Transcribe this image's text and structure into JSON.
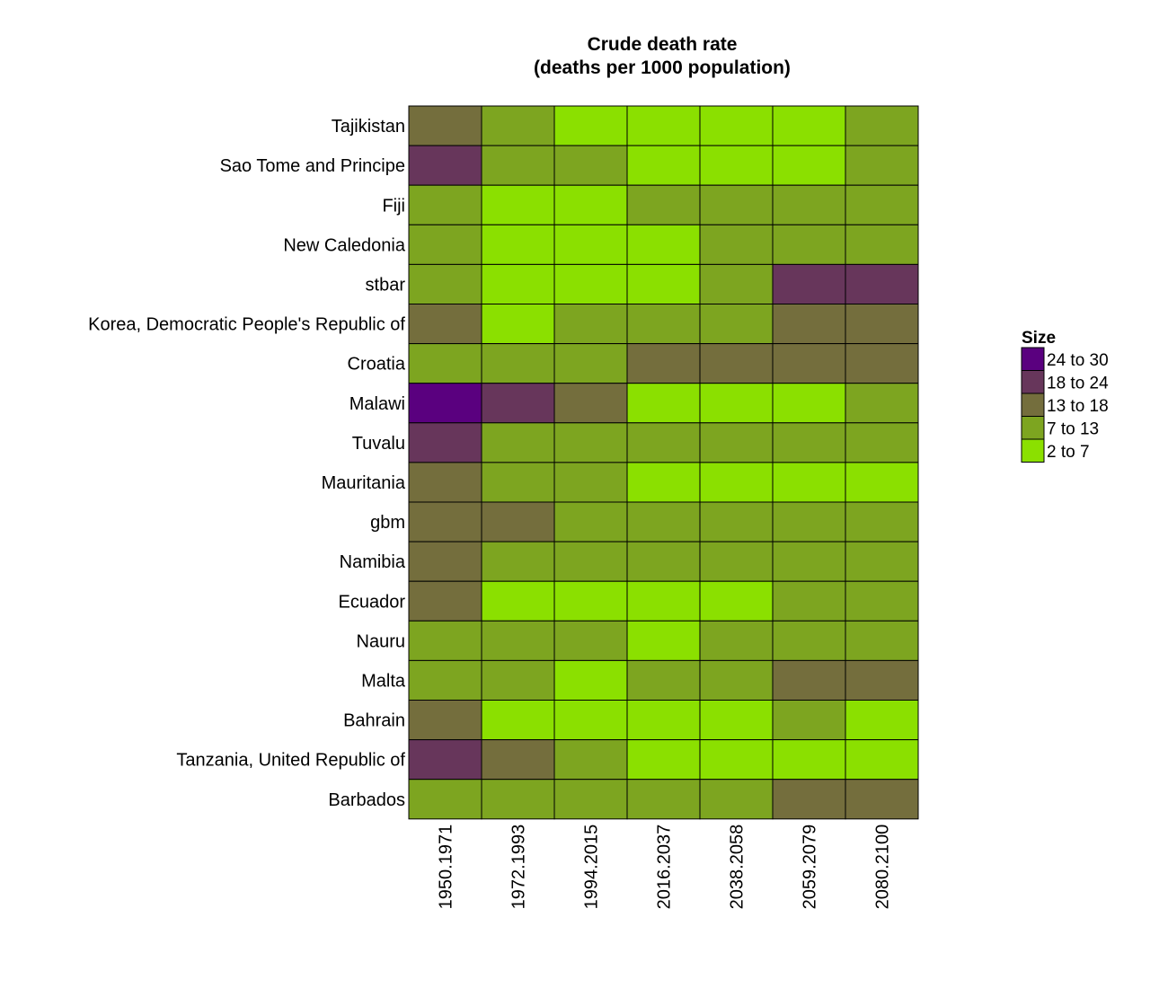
{
  "chart_data": {
    "type": "heatmap",
    "title_line1": "Crude death rate",
    "title_line2": "(deaths per 1000 population)",
    "xlabel": "",
    "ylabel": "",
    "x": [
      "1950.1971",
      "1972.1993",
      "1994.2015",
      "2016.2037",
      "2038.2058",
      "2059.2079",
      "2080.2100"
    ],
    "y": [
      "Tajikistan",
      "Sao Tome and Principe",
      "Fiji",
      "New Caledonia",
      "stbar",
      "Korea, Democratic People's Republic of",
      "Croatia",
      "Malawi",
      "Tuvalu",
      "Mauritania",
      "gbm",
      "Namibia",
      "Ecuador",
      "Nauru",
      "Malta",
      "Bahrain",
      "Tanzania, United Republic of",
      "Barbados"
    ],
    "bins": [
      "24 to 30",
      "18 to 24",
      "13 to 18",
      "7 to 13",
      "2 to 7"
    ],
    "bin_colors": [
      "#5a007f",
      "#67365b",
      "#746e3d",
      "#7da520",
      "#8be000"
    ],
    "values": [
      [
        3,
        4,
        5,
        5,
        5,
        5,
        4
      ],
      [
        2,
        4,
        4,
        5,
        5,
        5,
        4
      ],
      [
        4,
        5,
        5,
        4,
        4,
        4,
        4
      ],
      [
        4,
        5,
        5,
        5,
        4,
        4,
        4
      ],
      [
        4,
        5,
        5,
        5,
        4,
        2,
        2
      ],
      [
        3,
        5,
        4,
        4,
        4,
        3,
        3
      ],
      [
        4,
        4,
        4,
        3,
        3,
        3,
        3
      ],
      [
        1,
        2,
        3,
        5,
        5,
        5,
        4
      ],
      [
        2,
        4,
        4,
        4,
        4,
        4,
        4
      ],
      [
        3,
        4,
        4,
        5,
        5,
        5,
        5
      ],
      [
        3,
        3,
        4,
        4,
        4,
        4,
        4
      ],
      [
        3,
        4,
        4,
        4,
        4,
        4,
        4
      ],
      [
        3,
        5,
        5,
        5,
        5,
        4,
        4
      ],
      [
        4,
        4,
        4,
        5,
        4,
        4,
        4
      ],
      [
        4,
        4,
        5,
        4,
        4,
        3,
        3
      ],
      [
        3,
        5,
        5,
        5,
        5,
        4,
        5
      ],
      [
        2,
        3,
        4,
        5,
        5,
        5,
        5
      ],
      [
        4,
        4,
        4,
        4,
        4,
        3,
        3
      ]
    ],
    "legend": {
      "title": "Size",
      "position": "right"
    }
  }
}
